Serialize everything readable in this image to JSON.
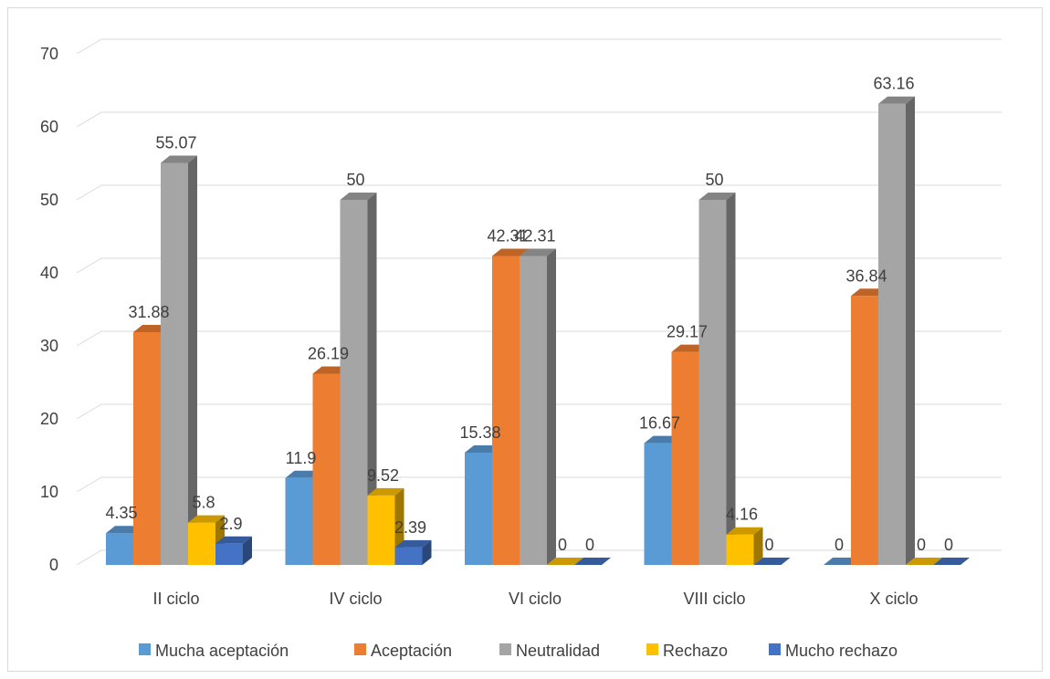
{
  "chart_data": {
    "type": "bar",
    "title": "",
    "xlabel": "",
    "ylabel": "",
    "ylim": [
      0,
      70
    ],
    "yticks": [
      0,
      10,
      20,
      30,
      40,
      50,
      60,
      70
    ],
    "grid": true,
    "legend_position": "bottom",
    "style": "3d-clustered-column",
    "categories": [
      "II ciclo",
      "IV ciclo",
      "VI ciclo",
      "VIII ciclo",
      "X ciclo"
    ],
    "series": [
      {
        "name": "Mucha aceptación",
        "color": "#5b9bd5",
        "values": [
          4.35,
          11.9,
          15.38,
          16.67,
          0
        ],
        "labels": [
          "4.35",
          "11.9",
          "15.38",
          "16.67",
          "0"
        ]
      },
      {
        "name": "Aceptación",
        "color": "#ed7d31",
        "values": [
          31.88,
          26.19,
          42.31,
          29.17,
          36.84
        ],
        "labels": [
          "31.88",
          "26.19",
          "42.31",
          "29.17",
          "36.84"
        ]
      },
      {
        "name": "Neutralidad",
        "color": "#a5a5a5",
        "values": [
          55.07,
          50,
          42.31,
          50,
          63.16
        ],
        "labels": [
          "55.07",
          "50",
          "42.31",
          "50",
          "63.16"
        ]
      },
      {
        "name": "Rechazo",
        "color": "#ffc000",
        "values": [
          5.8,
          9.52,
          0,
          4.16,
          0
        ],
        "labels": [
          "5.8",
          "9.52",
          "0",
          "4.16",
          "0"
        ]
      },
      {
        "name": "Mucho rechazo",
        "color": "#4472c4",
        "values": [
          2.9,
          2.39,
          0,
          0,
          0
        ],
        "labels": [
          "2.9",
          "2.39",
          "0",
          "0",
          "0"
        ]
      }
    ]
  }
}
